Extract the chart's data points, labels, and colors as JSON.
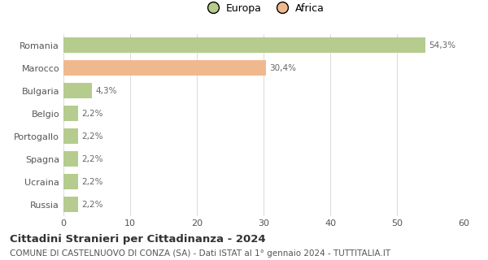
{
  "categories": [
    "Romania",
    "Marocco",
    "Bulgaria",
    "Belgio",
    "Portogallo",
    "Spagna",
    "Ucraina",
    "Russia"
  ],
  "values": [
    54.3,
    30.4,
    4.3,
    2.2,
    2.2,
    2.2,
    2.2,
    2.2
  ],
  "labels": [
    "54,3%",
    "30,4%",
    "4,3%",
    "2,2%",
    "2,2%",
    "2,2%",
    "2,2%",
    "2,2%"
  ],
  "colors": [
    "#b5cc8e",
    "#f0b98d",
    "#b5cc8e",
    "#b5cc8e",
    "#b5cc8e",
    "#b5cc8e",
    "#b5cc8e",
    "#b5cc8e"
  ],
  "legend_labels": [
    "Europa",
    "Africa"
  ],
  "legend_colors": [
    "#b5cc8e",
    "#f0b98d"
  ],
  "xlim": [
    0,
    60
  ],
  "xticks": [
    0,
    10,
    20,
    30,
    40,
    50,
    60
  ],
  "title": "Cittadini Stranieri per Cittadinanza - 2024",
  "subtitle": "COMUNE DI CASTELNUOVO DI CONZA (SA) - Dati ISTAT al 1° gennaio 2024 - TUTTITALIA.IT",
  "title_fontsize": 9.5,
  "subtitle_fontsize": 7.5,
  "bar_height": 0.7,
  "background_color": "#ffffff",
  "grid_color": "#dddddd",
  "label_color": "#666666",
  "tick_label_color": "#555555"
}
